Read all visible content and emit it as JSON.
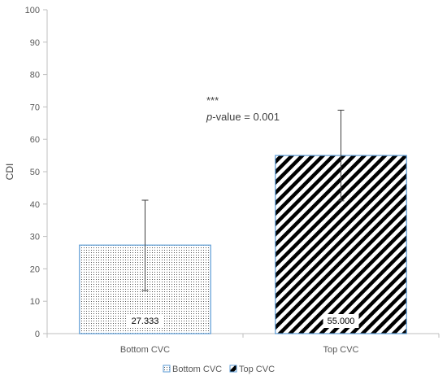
{
  "chart_data": {
    "type": "bar",
    "categories": [
      "Bottom CVC",
      "Top CVC"
    ],
    "values": [
      27.333,
      55.0
    ],
    "value_labels": [
      "27.333",
      "55.000"
    ],
    "error_bars": [
      {
        "low": 13.3,
        "high": 41.2
      },
      {
        "low": 41.0,
        "high": 69.0
      }
    ],
    "ylabel": "CDI",
    "ylim": [
      0,
      100
    ],
    "yticks": [
      0,
      10,
      20,
      30,
      40,
      50,
      60,
      70,
      80,
      90,
      100
    ],
    "grid": false,
    "legend": {
      "position": "bottom",
      "entries": [
        "Bottom CVC",
        "Top CVC"
      ]
    },
    "annotation": {
      "stars": "***",
      "pvalue_prefix": "p",
      "pvalue_rest": "-value = 0.001"
    },
    "colors": {
      "bar_border": "#5b9bd5",
      "bottom_fill_dot": "#555555",
      "top_fill_stripe": "#000000",
      "axis": "#bfbfbf",
      "error_bar": "#404040"
    },
    "patterns": [
      "dotted",
      "diagonal-stripes"
    ]
  }
}
